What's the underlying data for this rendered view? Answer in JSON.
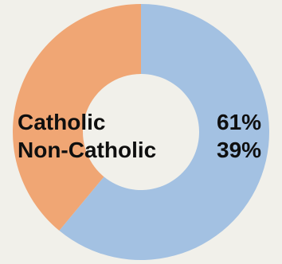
{
  "chart_data": {
    "type": "pie",
    "variant": "donut",
    "categories": [
      "Catholic",
      "Non-Catholic"
    ],
    "values": [
      61,
      39
    ],
    "value_labels": [
      "61%",
      "39%"
    ],
    "colors": [
      "#a3c1e2",
      "#f0a674"
    ],
    "background": "#f1f0ea",
    "legend": "center"
  }
}
